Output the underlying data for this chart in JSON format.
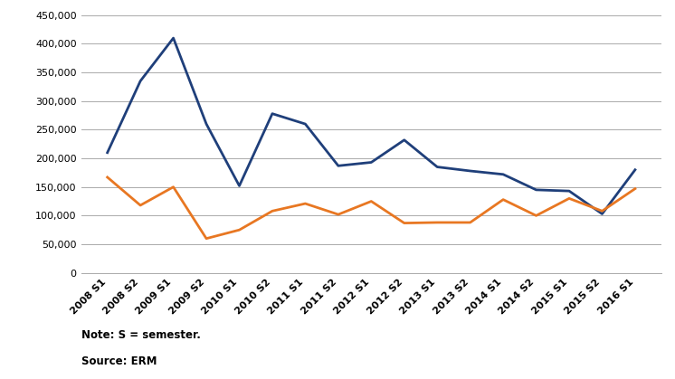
{
  "x_labels": [
    "2008 S1",
    "2008 S2",
    "2009 S1",
    "2009 S2",
    "2010 S1",
    "2010 S2",
    "2011 S1",
    "2011 S2",
    "2012 S1",
    "2012 S2",
    "2013 S1",
    "2013 S2",
    "2014 S1",
    "2014 S2",
    "2015 S1",
    "2015 S2",
    "2016 S1"
  ],
  "job_loss": [
    210000,
    335000,
    410000,
    260000,
    152000,
    278000,
    260000,
    187000,
    193000,
    232000,
    185000,
    178000,
    172000,
    145000,
    143000,
    103000,
    180000
  ],
  "job_gain": [
    167000,
    118000,
    150000,
    60000,
    75000,
    108000,
    121000,
    102000,
    125000,
    87000,
    88000,
    88000,
    128000,
    100000,
    130000,
    108000,
    147000
  ],
  "job_loss_color": "#1F3F7A",
  "job_gain_color": "#E87722",
  "ylim": [
    0,
    450000
  ],
  "yticks": [
    0,
    50000,
    100000,
    150000,
    200000,
    250000,
    300000,
    350000,
    400000,
    450000
  ],
  "note_line1": "Note: S = semester.",
  "note_line2": "Source: ERM",
  "background_color": "#FFFFFF",
  "grid_color": "#AAAAAA",
  "line_width": 2.0
}
